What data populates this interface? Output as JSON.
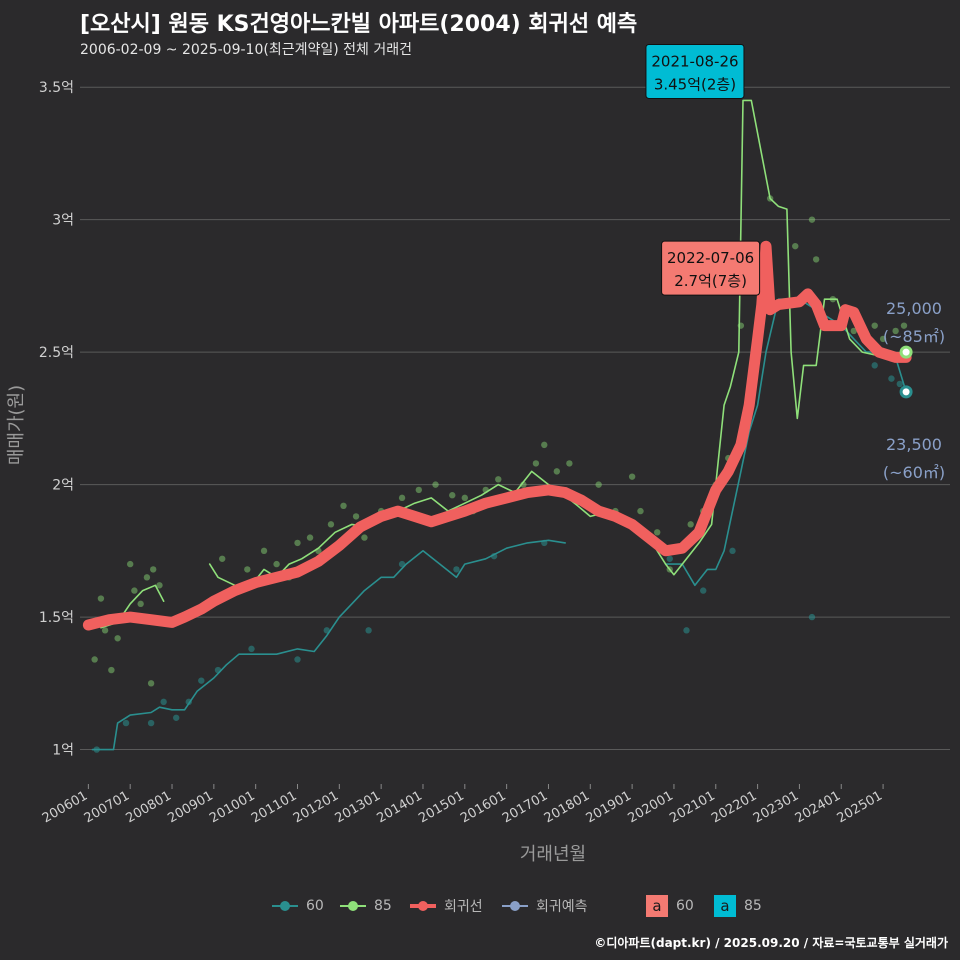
{
  "title": "[오산시] 원동 KS건영아느칸빌 아파트(2004) 회귀선 예측",
  "subtitle": "2006-02-09 ~ 2025-09-10(최근계약일) 전체 거래건",
  "caption": "©디아파트(dapt.kr) / 2025.09.20 / 자료=국토교통부 실거래가",
  "colors": {
    "background": "#2b2a2c",
    "grid": "#5a5a5a",
    "s60": "#2a8f8f",
    "s85": "#8fe07a",
    "regression": "#f0605e",
    "forecast": "#8aa0c8",
    "label60_fill": "#00bcd4",
    "label85_fill": "#f47a72"
  },
  "legend": {
    "items": [
      {
        "key": "s60",
        "label": "60"
      },
      {
        "key": "s85",
        "label": "85"
      },
      {
        "key": "regression",
        "label": "회귀선"
      },
      {
        "key": "forecast",
        "label": "회귀예측"
      }
    ],
    "text_keys": [
      {
        "glyph": "a",
        "label": "60",
        "fill_key": "label85_fill"
      },
      {
        "glyph": "a",
        "label": "85",
        "fill_key": "label60_fill"
      }
    ]
  },
  "chart_data": {
    "type": "line",
    "xlabel": "거래년월",
    "ylabel": "매매가(원)",
    "x_range": [
      2005.8,
      2026.6
    ],
    "ylim": [
      0.87,
      3.58
    ],
    "y_ticks": [
      {
        "v": 1.0,
        "label": "1억"
      },
      {
        "v": 1.5,
        "label": "1.5억"
      },
      {
        "v": 2.0,
        "label": "2억"
      },
      {
        "v": 2.5,
        "label": "2.5억"
      },
      {
        "v": 3.0,
        "label": "3억"
      },
      {
        "v": 3.5,
        "label": "3.5억"
      }
    ],
    "x_ticks": [
      {
        "v": 2006.0,
        "label": "200601"
      },
      {
        "v": 2007.0,
        "label": "200701"
      },
      {
        "v": 2008.0,
        "label": "200801"
      },
      {
        "v": 2009.0,
        "label": "200901"
      },
      {
        "v": 2010.0,
        "label": "201001"
      },
      {
        "v": 2011.0,
        "label": "201101"
      },
      {
        "v": 2012.0,
        "label": "201201"
      },
      {
        "v": 2013.0,
        "label": "201301"
      },
      {
        "v": 2014.0,
        "label": "201401"
      },
      {
        "v": 2015.0,
        "label": "201501"
      },
      {
        "v": 2016.0,
        "label": "201601"
      },
      {
        "v": 2017.0,
        "label": "201701"
      },
      {
        "v": 2018.0,
        "label": "201801"
      },
      {
        "v": 2019.0,
        "label": "201901"
      },
      {
        "v": 2020.0,
        "label": "202001"
      },
      {
        "v": 2021.0,
        "label": "202101"
      },
      {
        "v": 2022.0,
        "label": "202201"
      },
      {
        "v": 2023.0,
        "label": "202301"
      },
      {
        "v": 2024.0,
        "label": "202401"
      },
      {
        "v": 2025.0,
        "label": "202501"
      }
    ],
    "series": [
      {
        "name": "60",
        "color_key": "s60",
        "values": [
          [
            2006.1,
            1.0
          ],
          [
            2006.6,
            1.0
          ],
          [
            2006.7,
            1.1
          ],
          [
            2007.0,
            1.13
          ],
          [
            2007.5,
            1.14
          ],
          [
            2007.7,
            1.16
          ],
          [
            2008.0,
            1.15
          ],
          [
            2008.3,
            1.15
          ],
          [
            2008.6,
            1.22
          ],
          [
            2009.0,
            1.27
          ],
          [
            2009.3,
            1.32
          ],
          [
            2009.6,
            1.36
          ],
          [
            2010.0,
            1.36
          ],
          [
            2010.5,
            1.36
          ],
          [
            2011.0,
            1.38
          ],
          [
            2011.4,
            1.37
          ],
          [
            2011.7,
            1.43
          ],
          [
            2012.0,
            1.5
          ],
          [
            2012.3,
            1.55
          ],
          [
            2012.6,
            1.6
          ],
          [
            2013.0,
            1.65
          ],
          [
            2013.3,
            1.65
          ],
          [
            2013.6,
            1.7
          ],
          [
            2014.0,
            1.75
          ],
          [
            2014.8,
            1.65
          ],
          [
            2015.0,
            1.7
          ],
          [
            2015.5,
            1.72
          ],
          [
            2016.0,
            1.76
          ],
          [
            2016.5,
            1.78
          ],
          [
            2017.0,
            1.79
          ],
          [
            2017.4,
            1.78
          ],
          [
            2019.8,
            1.7
          ],
          [
            2020.2,
            1.7
          ],
          [
            2020.5,
            1.62
          ],
          [
            2020.8,
            1.68
          ],
          [
            2021.0,
            1.68
          ],
          [
            2021.2,
            1.75
          ],
          [
            2021.4,
            1.9
          ],
          [
            2021.6,
            2.05
          ],
          [
            2021.8,
            2.2
          ],
          [
            2022.0,
            2.3
          ],
          [
            2022.2,
            2.5
          ],
          [
            2022.5,
            2.7
          ],
          [
            2023.0,
            2.7
          ],
          [
            2023.5,
            2.65
          ],
          [
            2024.0,
            2.6
          ],
          [
            2024.3,
            2.55
          ],
          [
            2024.6,
            2.5
          ],
          [
            2025.0,
            2.5
          ],
          [
            2025.3,
            2.48
          ],
          [
            2025.55,
            2.35
          ]
        ]
      },
      {
        "name": "85",
        "color_key": "s85",
        "values": [
          [
            2006.3,
            1.46
          ],
          [
            2006.7,
            1.48
          ],
          [
            2007.0,
            1.55
          ],
          [
            2007.3,
            1.6
          ],
          [
            2007.6,
            1.62
          ],
          [
            2007.8,
            1.56
          ],
          [
            2008.9,
            1.7
          ],
          [
            2009.1,
            1.65
          ],
          [
            2009.5,
            1.62
          ],
          [
            2009.8,
            1.6
          ],
          [
            2010.2,
            1.68
          ],
          [
            2010.5,
            1.65
          ],
          [
            2010.8,
            1.7
          ],
          [
            2011.1,
            1.72
          ],
          [
            2011.5,
            1.76
          ],
          [
            2011.9,
            1.82
          ],
          [
            2012.3,
            1.85
          ],
          [
            2012.7,
            1.84
          ],
          [
            2013.0,
            1.88
          ],
          [
            2013.4,
            1.9
          ],
          [
            2013.8,
            1.93
          ],
          [
            2014.2,
            1.95
          ],
          [
            2014.6,
            1.9
          ],
          [
            2015.0,
            1.93
          ],
          [
            2015.4,
            1.96
          ],
          [
            2015.8,
            2.0
          ],
          [
            2016.2,
            1.97
          ],
          [
            2016.6,
            2.05
          ],
          [
            2017.0,
            2.0
          ],
          [
            2017.3,
            1.97
          ],
          [
            2017.7,
            1.92
          ],
          [
            2018.0,
            1.88
          ],
          [
            2018.5,
            1.9
          ],
          [
            2019.0,
            1.85
          ],
          [
            2019.4,
            1.8
          ],
          [
            2019.8,
            1.7
          ],
          [
            2020.0,
            1.66
          ],
          [
            2020.3,
            1.72
          ],
          [
            2020.6,
            1.78
          ],
          [
            2020.9,
            1.85
          ],
          [
            2021.2,
            2.3
          ],
          [
            2021.35,
            2.37
          ],
          [
            2021.55,
            2.5
          ],
          [
            2021.65,
            3.45
          ],
          [
            2021.85,
            3.45
          ],
          [
            2022.3,
            3.08
          ],
          [
            2022.5,
            3.05
          ],
          [
            2022.7,
            3.04
          ],
          [
            2022.8,
            2.5
          ],
          [
            2022.95,
            2.25
          ],
          [
            2023.1,
            2.45
          ],
          [
            2023.4,
            2.45
          ],
          [
            2023.6,
            2.7
          ],
          [
            2023.9,
            2.7
          ],
          [
            2024.2,
            2.55
          ],
          [
            2024.5,
            2.5
          ],
          [
            2024.8,
            2.49
          ],
          [
            2025.2,
            2.49
          ],
          [
            2025.55,
            2.5
          ]
        ]
      },
      {
        "name": "회귀선",
        "color_key": "regression",
        "values": [
          [
            2006.0,
            1.47
          ],
          [
            2006.5,
            1.49
          ],
          [
            2007.0,
            1.5
          ],
          [
            2007.5,
            1.49
          ],
          [
            2008.0,
            1.48
          ],
          [
            2008.3,
            1.5
          ],
          [
            2008.7,
            1.53
          ],
          [
            2009.0,
            1.56
          ],
          [
            2009.5,
            1.6
          ],
          [
            2010.0,
            1.63
          ],
          [
            2010.5,
            1.65
          ],
          [
            2011.0,
            1.67
          ],
          [
            2011.5,
            1.71
          ],
          [
            2012.0,
            1.77
          ],
          [
            2012.5,
            1.84
          ],
          [
            2013.0,
            1.88
          ],
          [
            2013.4,
            1.9
          ],
          [
            2013.8,
            1.88
          ],
          [
            2014.2,
            1.86
          ],
          [
            2014.6,
            1.88
          ],
          [
            2015.0,
            1.9
          ],
          [
            2015.5,
            1.93
          ],
          [
            2016.0,
            1.95
          ],
          [
            2016.5,
            1.97
          ],
          [
            2017.0,
            1.98
          ],
          [
            2017.4,
            1.97
          ],
          [
            2017.8,
            1.94
          ],
          [
            2018.2,
            1.9
          ],
          [
            2018.6,
            1.88
          ],
          [
            2019.0,
            1.85
          ],
          [
            2019.4,
            1.8
          ],
          [
            2019.8,
            1.75
          ],
          [
            2020.2,
            1.76
          ],
          [
            2020.6,
            1.82
          ],
          [
            2021.0,
            1.98
          ],
          [
            2021.3,
            2.05
          ],
          [
            2021.6,
            2.15
          ],
          [
            2021.8,
            2.3
          ],
          [
            2022.0,
            2.55
          ],
          [
            2022.1,
            2.68
          ],
          [
            2022.2,
            2.9
          ],
          [
            2022.3,
            2.66
          ],
          [
            2022.5,
            2.68
          ],
          [
            2023.0,
            2.69
          ],
          [
            2023.2,
            2.72
          ],
          [
            2023.4,
            2.68
          ],
          [
            2023.6,
            2.6
          ],
          [
            2023.9,
            2.6
          ],
          [
            2024.0,
            2.6
          ],
          [
            2024.1,
            2.66
          ],
          [
            2024.3,
            2.65
          ],
          [
            2024.6,
            2.55
          ],
          [
            2024.9,
            2.5
          ],
          [
            2025.3,
            2.48
          ],
          [
            2025.55,
            2.48
          ]
        ]
      }
    ],
    "scatter": {
      "s85": [
        [
          2006.15,
          1.34
        ],
        [
          2006.3,
          1.57
        ],
        [
          2006.4,
          1.45
        ],
        [
          2006.55,
          1.3
        ],
        [
          2006.7,
          1.42
        ],
        [
          2006.85,
          1.5
        ],
        [
          2007.0,
          1.7
        ],
        [
          2007.1,
          1.6
        ],
        [
          2007.25,
          1.55
        ],
        [
          2007.4,
          1.65
        ],
        [
          2007.55,
          1.68
        ],
        [
          2007.7,
          1.62
        ],
        [
          2007.5,
          1.25
        ],
        [
          2009.2,
          1.72
        ],
        [
          2009.5,
          1.6
        ],
        [
          2009.8,
          1.68
        ],
        [
          2010.2,
          1.75
        ],
        [
          2010.5,
          1.7
        ],
        [
          2010.8,
          1.65
        ],
        [
          2011.0,
          1.78
        ],
        [
          2011.3,
          1.8
        ],
        [
          2011.5,
          1.75
        ],
        [
          2011.8,
          1.85
        ],
        [
          2012.1,
          1.92
        ],
        [
          2012.4,
          1.88
        ],
        [
          2012.6,
          1.8
        ],
        [
          2013.0,
          1.9
        ],
        [
          2013.5,
          1.95
        ],
        [
          2013.9,
          1.98
        ],
        [
          2014.3,
          2.0
        ],
        [
          2014.7,
          1.96
        ],
        [
          2015.0,
          1.95
        ],
        [
          2015.2,
          1.9
        ],
        [
          2015.5,
          1.98
        ],
        [
          2015.8,
          2.02
        ],
        [
          2016.1,
          1.95
        ],
        [
          2016.4,
          2.0
        ],
        [
          2016.7,
          2.08
        ],
        [
          2016.9,
          2.15
        ],
        [
          2017.2,
          2.05
        ],
        [
          2017.5,
          2.08
        ],
        [
          2017.8,
          1.95
        ],
        [
          2018.2,
          2.0
        ],
        [
          2018.6,
          1.9
        ],
        [
          2019.0,
          2.03
        ],
        [
          2019.2,
          1.9
        ],
        [
          2019.6,
          1.82
        ],
        [
          2019.9,
          1.68
        ],
        [
          2020.1,
          1.75
        ],
        [
          2020.4,
          1.85
        ],
        [
          2020.7,
          1.9
        ],
        [
          2021.0,
          2.0
        ],
        [
          2021.3,
          2.1
        ],
        [
          2021.6,
          2.6
        ],
        [
          2022.3,
          3.08
        ],
        [
          2022.9,
          2.9
        ],
        [
          2023.3,
          3.0
        ],
        [
          2023.4,
          2.85
        ],
        [
          2023.8,
          2.7
        ],
        [
          2024.1,
          2.65
        ],
        [
          2024.3,
          2.58
        ],
        [
          2024.6,
          2.55
        ],
        [
          2024.8,
          2.6
        ],
        [
          2025.0,
          2.55
        ],
        [
          2025.3,
          2.58
        ],
        [
          2025.5,
          2.6
        ]
      ],
      "s60": [
        [
          2006.2,
          1.0
        ],
        [
          2006.9,
          1.1
        ],
        [
          2007.5,
          1.1
        ],
        [
          2007.8,
          1.18
        ],
        [
          2008.1,
          1.12
        ],
        [
          2008.4,
          1.18
        ],
        [
          2008.7,
          1.26
        ],
        [
          2009.1,
          1.3
        ],
        [
          2009.9,
          1.38
        ],
        [
          2011.0,
          1.34
        ],
        [
          2011.7,
          1.45
        ],
        [
          2012.7,
          1.45
        ],
        [
          2013.5,
          1.7
        ],
        [
          2014.8,
          1.68
        ],
        [
          2015.7,
          1.73
        ],
        [
          2016.9,
          1.78
        ],
        [
          2019.9,
          1.72
        ],
        [
          2020.3,
          1.45
        ],
        [
          2020.7,
          1.6
        ],
        [
          2021.4,
          1.75
        ],
        [
          2023.3,
          1.5
        ],
        [
          2024.8,
          2.45
        ],
        [
          2025.2,
          2.4
        ],
        [
          2025.4,
          2.38
        ]
      ]
    },
    "annotations": [
      {
        "x": 2021.65,
        "y": 3.45,
        "line1": "2021-08-26",
        "line2": "3.45억(2층)",
        "fill_key": "label60_fill"
      },
      {
        "x": 2022.55,
        "y": 2.7,
        "line1": "2022-07-06",
        "line2": "2.7억(7층)",
        "fill_key": "label85_fill"
      }
    ],
    "end_labels": [
      {
        "y": 2.5,
        "line1": "25,000",
        "line2": "(~85㎡)",
        "color_key": "s85"
      },
      {
        "y": 2.35,
        "line1": "23,500",
        "line2": "(~60㎡)",
        "color_key": "s60"
      }
    ]
  }
}
